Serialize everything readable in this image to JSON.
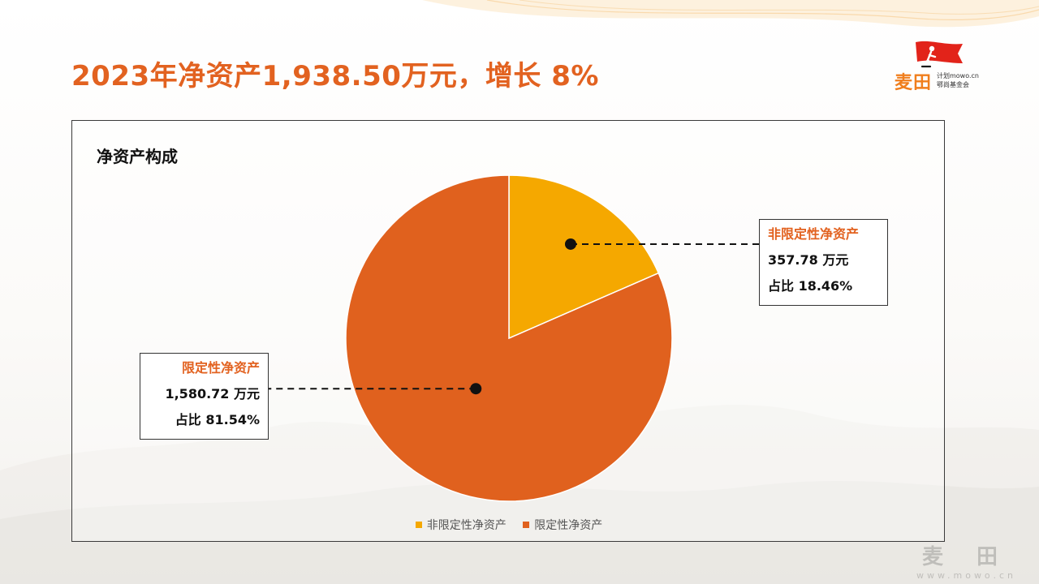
{
  "headline": "2023年净资产1,938.50万元，增长 8%",
  "brand": {
    "name": "麦田",
    "line1": "计划mowo.cn",
    "line2": "鄂尚基金会"
  },
  "watermark": {
    "name": "麦 田",
    "url": "www.mowo.cn"
  },
  "colors": {
    "accent": "#E26220",
    "series_a": "#F5A800",
    "series_b": "#E0611E"
  },
  "chart_data": {
    "type": "pie",
    "title": "净资产构成",
    "slices": [
      {
        "name": "非限定性净资产",
        "value": 357.78,
        "value_label": "357.78 万元",
        "percent": 18.46,
        "percent_label": "占比 18.46%",
        "color": "#F5A800"
      },
      {
        "name": "限定性净资产",
        "value": 1580.72,
        "value_label": "1,580.72 万元",
        "percent": 81.54,
        "percent_label": "占比 81.54%",
        "color": "#E0611E"
      }
    ],
    "legend": {
      "position": "bottom"
    }
  }
}
